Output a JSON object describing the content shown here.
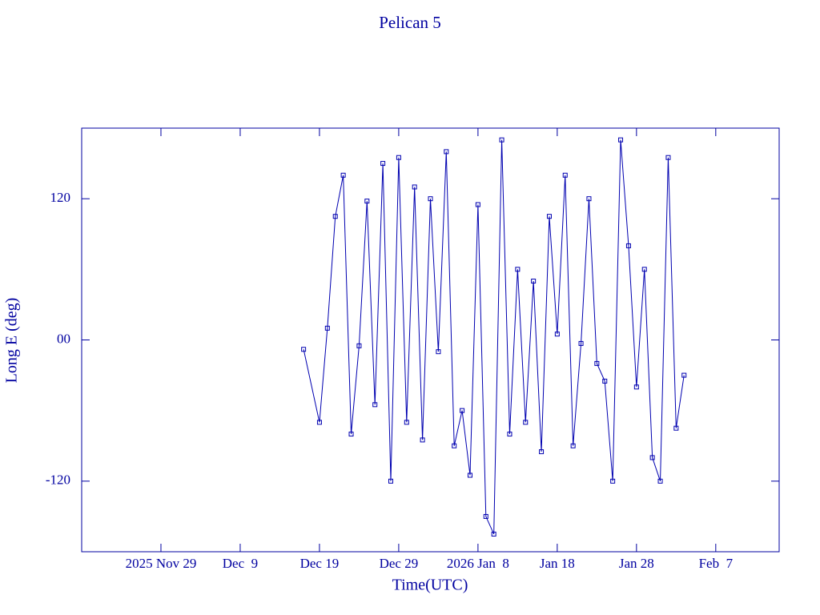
{
  "chart_data": {
    "type": "line",
    "title": "Pelican 5",
    "x_label": "Time(UTC)",
    "y_label": "Long E (deg)",
    "x": [
      "2025-12-17",
      "2025-12-19",
      "2025-12-20",
      "2025-12-21",
      "2025-12-22",
      "2025-12-23",
      "2025-12-24",
      "2025-12-25",
      "2025-12-26",
      "2025-12-27",
      "2025-12-28",
      "2025-12-29",
      "2025-12-30",
      "2025-12-31",
      "2026-01-01",
      "2026-01-02",
      "2026-01-03",
      "2026-01-04",
      "2026-01-05",
      "2026-01-06",
      "2026-01-07",
      "2026-01-08",
      "2026-01-09",
      "2026-01-10",
      "2026-01-11",
      "2026-01-12",
      "2026-01-13",
      "2026-01-14",
      "2026-01-15",
      "2026-01-16",
      "2026-01-17",
      "2026-01-18",
      "2026-01-19",
      "2026-01-20",
      "2026-01-21",
      "2026-01-22",
      "2026-01-23",
      "2026-01-24",
      "2026-01-25",
      "2026-01-26",
      "2026-01-27",
      "2026-01-28",
      "2026-01-29",
      "2026-01-30",
      "2026-01-31",
      "2026-02-01",
      "2026-02-02",
      "2026-02-03"
    ],
    "series": [
      {
        "color": "#0000b0",
        "values": [
          -8,
          -70,
          10,
          105,
          140,
          -80,
          -5,
          118,
          -55,
          150,
          -120,
          155,
          -70,
          130,
          -85,
          120,
          -10,
          160,
          -90,
          -60,
          -115,
          115,
          -150,
          -165,
          170,
          -80,
          60,
          -70,
          50,
          -95,
          105,
          5,
          140,
          -90,
          -3,
          120,
          -20,
          -35,
          -120,
          170,
          80,
          -40,
          60,
          -100,
          -120,
          155,
          -75,
          -30
        ]
      }
    ],
    "xlim": [
      "2025-11-19",
      "2026-02-15"
    ],
    "xticks": [
      {
        "value": "2025-11-29",
        "label": "2025 Nov 29"
      },
      {
        "value": "2025-12-09",
        "label": "Dec  9"
      },
      {
        "value": "2025-12-19",
        "label": "Dec 19"
      },
      {
        "value": "2025-12-29",
        "label": "Dec 29"
      },
      {
        "value": "2026-01-08",
        "label": "2026 Jan  8"
      },
      {
        "value": "2026-01-18",
        "label": "Jan 18"
      },
      {
        "value": "2026-01-28",
        "label": "Jan 28"
      },
      {
        "value": "2026-02-07",
        "label": "Feb  7"
      }
    ],
    "ylim": [
      -180,
      180
    ],
    "yticks": [
      -120,
      {
        "value": 0,
        "label": "00"
      },
      120
    ]
  }
}
